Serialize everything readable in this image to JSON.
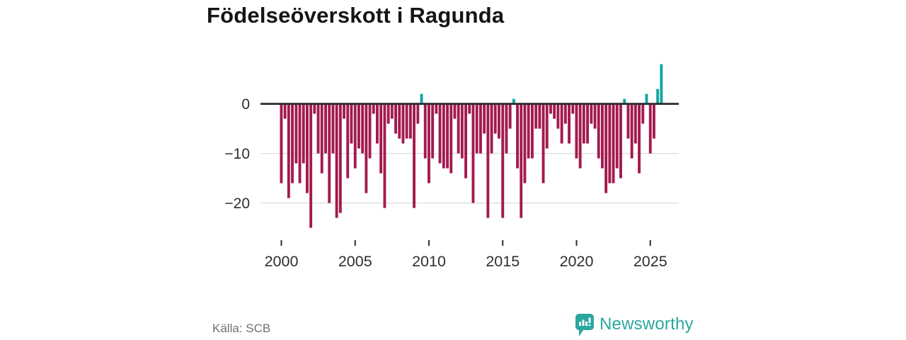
{
  "title": "Födelseöverskott i Ragunda",
  "footer": {
    "source": "Källa: SCB",
    "logo_text": "Newsworthy"
  },
  "colors": {
    "negative_bar": "#a31a4f",
    "positive_bar": "#12a5a1",
    "axis_line": "#2e2e2e",
    "gridline": "#dcdcdc",
    "tick_text": "#2e2e2e",
    "logo_teal": "#2aa79e"
  },
  "chart_data": {
    "type": "bar",
    "title": "Födelseöverskott i Ragunda",
    "x_frequency": "quarterly",
    "first_period": "2000Q1",
    "last_period": "2025Q4",
    "values": [
      -16,
      -3,
      -19,
      -16,
      -12,
      -16,
      -12,
      -18,
      -25,
      -2,
      -10,
      -14,
      -10,
      -20,
      -10,
      -23,
      -22,
      -3,
      -15,
      -8,
      -13,
      -9,
      -10,
      -18,
      -11,
      -2,
      -8,
      -14,
      -21,
      -4,
      -3,
      -6,
      -7,
      -8,
      -7,
      -7,
      -21,
      -4,
      2,
      -11,
      -16,
      -11,
      -2,
      -12,
      -13,
      -13,
      -14,
      -3,
      -10,
      -11,
      -15,
      -2,
      -20,
      -10,
      -10,
      -6,
      -23,
      -10,
      -6,
      -7,
      -23,
      -10,
      -5,
      1,
      -13,
      -23,
      -16,
      -11,
      -11,
      -5,
      -5,
      -16,
      -9,
      -2,
      -3,
      -5,
      -8,
      -4,
      -8,
      -2,
      -11,
      -13,
      -8,
      -8,
      -4,
      -5,
      -11,
      -13,
      -18,
      -16,
      -16,
      -13,
      -15,
      1,
      -7,
      -11,
      -8,
      -14,
      -4,
      2,
      -10,
      -7,
      3,
      8
    ],
    "xticks": [
      2000,
      2005,
      2010,
      2015,
      2020,
      2025
    ],
    "yticks": [
      0,
      -10,
      -20
    ],
    "ytick_labels": [
      "0",
      "−10",
      "−20"
    ],
    "ylim": [
      -26,
      9
    ],
    "grid": "horizontal",
    "legend": "none",
    "positive_color": "#12a5a1",
    "negative_color": "#a31a4f"
  }
}
